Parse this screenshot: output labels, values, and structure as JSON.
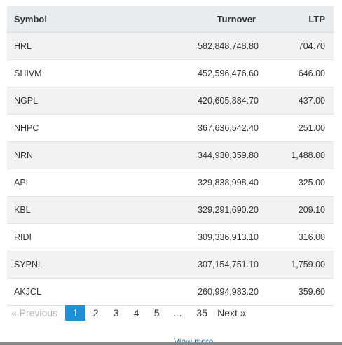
{
  "table": {
    "headers": {
      "symbol": "Symbol",
      "turnover": "Turnover",
      "ltp": "LTP"
    },
    "rows": [
      {
        "symbol": "HRL",
        "turnover": "582,848,748.80",
        "ltp": "704.70"
      },
      {
        "symbol": "SHIVM",
        "turnover": "452,596,476.60",
        "ltp": "646.00"
      },
      {
        "symbol": "NGPL",
        "turnover": "420,605,884.70",
        "ltp": "437.00"
      },
      {
        "symbol": "NHPC",
        "turnover": "367,636,542.40",
        "ltp": "251.00"
      },
      {
        "symbol": "NRN",
        "turnover": "344,930,359.80",
        "ltp": "1,488.00"
      },
      {
        "symbol": "API",
        "turnover": "329,838,998.40",
        "ltp": "325.00"
      },
      {
        "symbol": "KBL",
        "turnover": "329,291,690.20",
        "ltp": "209.10"
      },
      {
        "symbol": "RIDI",
        "turnover": "309,336,913.10",
        "ltp": "316.00"
      },
      {
        "symbol": "SYPNL",
        "turnover": "307,154,751.10",
        "ltp": "1,759.00"
      },
      {
        "symbol": "AKJCL",
        "turnover": "260,994,983.20",
        "ltp": "359.60"
      }
    ]
  },
  "pagination": {
    "previous": "« Previous",
    "pages": [
      "1",
      "2",
      "3",
      "4",
      "5"
    ],
    "active_page": "1",
    "ellipsis": "…",
    "last_page": "35",
    "next": "Next »"
  },
  "footer": {
    "view_more": "View more"
  },
  "colors": {
    "active_page_bg": "#1e90d6",
    "header_bg": "#e9ecef",
    "stripe": "#f2f2f2"
  }
}
